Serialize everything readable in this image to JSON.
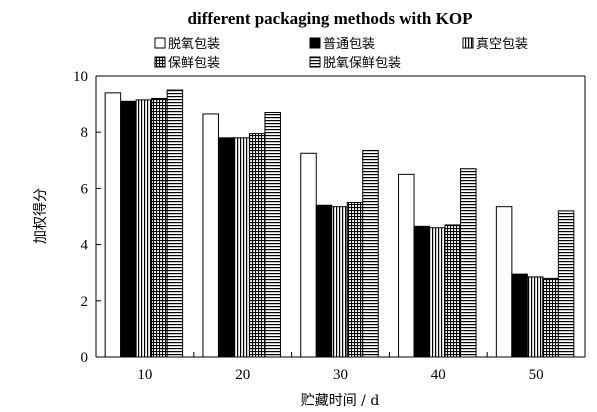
{
  "chart_data": {
    "type": "bar",
    "title": "different packaging methods with KOP",
    "xlabel": "贮藏时间 / d",
    "ylabel": "加权得分",
    "ylim": [
      0,
      10
    ],
    "yticks": [
      0,
      2,
      4,
      6,
      8,
      10
    ],
    "categories": [
      "10",
      "20",
      "30",
      "40",
      "50"
    ],
    "legend": "top",
    "grid": false,
    "series": [
      {
        "name": "脱氧包装",
        "pattern": "white",
        "values": [
          9.4,
          8.65,
          7.25,
          6.5,
          5.35
        ]
      },
      {
        "name": "普通包装",
        "pattern": "black",
        "values": [
          9.1,
          7.8,
          5.4,
          4.65,
          2.95
        ]
      },
      {
        "name": "真空包装",
        "pattern": "vlines",
        "values": [
          9.15,
          7.8,
          5.35,
          4.6,
          2.85
        ]
      },
      {
        "name": "保鲜包装",
        "pattern": "grid",
        "values": [
          9.2,
          7.95,
          5.5,
          4.7,
          2.8
        ]
      },
      {
        "name": "脱氧保鲜包装",
        "pattern": "hlines",
        "values": [
          9.5,
          8.7,
          7.35,
          6.7,
          5.2
        ]
      }
    ]
  }
}
